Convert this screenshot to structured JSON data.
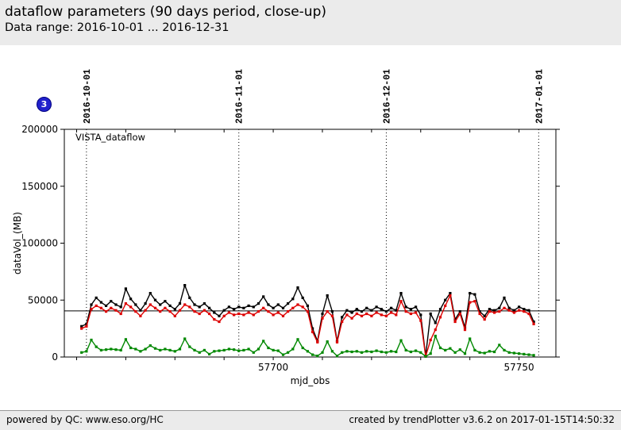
{
  "header": {
    "title": "dataflow parameters (90 days period, close-up)",
    "subtitle": "Data range: 2016-10-01 ... 2016-12-31"
  },
  "badge": {
    "label": "3",
    "color": "#2121cc"
  },
  "footer": {
    "left": "powered by QC: www.eso.org/HC",
    "right": "created by trendPlotter v3.6.2 on 2017-01-15T14:50:32"
  },
  "chart_data": {
    "type": "line",
    "inset_legend": "VISTA_dataflow",
    "xlabel": "mjd_obs",
    "ylabel": "dataVol_(MB)",
    "xlim": [
      57657.5,
      57757.5
    ],
    "ylim": [
      0,
      200000
    ],
    "y_ticks": [
      0,
      50000,
      100000,
      150000,
      200000
    ],
    "y_tick_labels": [
      "0",
      "50000",
      "100000",
      "150000",
      "200000"
    ],
    "x_ticks_labeled": [
      57700,
      57750
    ],
    "x_tick_labels": [
      "57700",
      "57750"
    ],
    "x_minor_ticks": [
      57660,
      57670,
      57680,
      57690,
      57700,
      57710,
      57720,
      57730,
      57740,
      57750
    ],
    "top_date_ticks": [
      {
        "mjd": 57662,
        "label": "2016-10-01"
      },
      {
        "mjd": 57693,
        "label": "2016-11-01"
      },
      {
        "mjd": 57723,
        "label": "2016-12-01"
      },
      {
        "mjd": 57754,
        "label": "2017-01-01"
      }
    ],
    "reference_line_y": 40500,
    "grid": "vertical dotted lines at month boundaries",
    "legend_position": "top-left inset",
    "x": [
      57661,
      57662,
      57663,
      57664,
      57665,
      57666,
      57667,
      57668,
      57669,
      57670,
      57671,
      57672,
      57673,
      57674,
      57675,
      57676,
      57677,
      57678,
      57679,
      57680,
      57681,
      57682,
      57683,
      57684,
      57685,
      57686,
      57687,
      57688,
      57689,
      57690,
      57691,
      57692,
      57693,
      57694,
      57695,
      57696,
      57697,
      57698,
      57699,
      57700,
      57701,
      57702,
      57703,
      57704,
      57705,
      57706,
      57707,
      57708,
      57709,
      57710,
      57711,
      57712,
      57713,
      57714,
      57715,
      57716,
      57717,
      57718,
      57719,
      57720,
      57721,
      57722,
      57723,
      57724,
      57725,
      57726,
      57727,
      57728,
      57729,
      57730,
      57731,
      57732,
      57733,
      57734,
      57735,
      57736,
      57737,
      57738,
      57739,
      57740,
      57741,
      57742,
      57743,
      57744,
      57745,
      57746,
      57747,
      57748,
      57749,
      57750,
      57751,
      57752,
      57753
    ],
    "series": [
      {
        "name": "black",
        "color": "#000000",
        "values": [
          27000,
          29000,
          46000,
          52000,
          48000,
          45000,
          49000,
          46000,
          44000,
          60000,
          51000,
          46000,
          41000,
          47000,
          56000,
          50000,
          46000,
          49000,
          45000,
          42000,
          47000,
          63000,
          52000,
          46000,
          44000,
          47000,
          43000,
          39000,
          36000,
          41000,
          44000,
          42000,
          44000,
          43000,
          45000,
          44000,
          47000,
          53000,
          46000,
          43000,
          46000,
          43000,
          47000,
          51000,
          61000,
          52000,
          45000,
          25000,
          14000,
          38000,
          54000,
          40000,
          14000,
          35000,
          41000,
          39000,
          42000,
          40000,
          43000,
          41000,
          44000,
          42000,
          40000,
          43000,
          41000,
          56000,
          44000,
          42000,
          44000,
          37000,
          1000,
          38000,
          30000,
          42000,
          50000,
          56000,
          33000,
          40000,
          26000,
          56000,
          55000,
          40000,
          36000,
          42000,
          41000,
          43000,
          52000,
          43000,
          41000,
          44000,
          42000,
          41000,
          31000
        ]
      },
      {
        "name": "red",
        "color": "#dd0000",
        "values": [
          25000,
          27000,
          42000,
          45000,
          43000,
          40000,
          43000,
          41000,
          38000,
          47000,
          44000,
          40000,
          36000,
          41000,
          46000,
          43000,
          40000,
          43000,
          40000,
          36000,
          41000,
          46000,
          44000,
          40000,
          38000,
          41000,
          38000,
          33000,
          31000,
          36000,
          39000,
          37000,
          38000,
          37000,
          39000,
          37000,
          40000,
          43000,
          40000,
          37000,
          39000,
          36000,
          40000,
          43000,
          46000,
          44000,
          40000,
          22000,
          13000,
          34000,
          40000,
          36000,
          13000,
          31000,
          37000,
          34000,
          38000,
          36000,
          38000,
          36000,
          39000,
          37000,
          36000,
          39000,
          37000,
          49000,
          40000,
          38000,
          39000,
          32000,
          500,
          15000,
          24000,
          35000,
          45000,
          54000,
          31000,
          38000,
          24000,
          48000,
          49000,
          38000,
          33000,
          40000,
          39000,
          40000,
          43000,
          41000,
          39000,
          41000,
          40000,
          38000,
          29000
        ]
      },
      {
        "name": "green",
        "color": "#008800",
        "values": [
          4000,
          5000,
          15000,
          9000,
          6000,
          6500,
          7000,
          6500,
          6000,
          15500,
          8000,
          7000,
          5000,
          7000,
          10000,
          7500,
          6000,
          7000,
          6000,
          5000,
          7000,
          16000,
          9000,
          6000,
          4000,
          6000,
          2500,
          5000,
          5500,
          6000,
          7000,
          6500,
          5500,
          6000,
          7000,
          4000,
          7000,
          14000,
          8000,
          6000,
          5500,
          2000,
          4000,
          7000,
          15500,
          8000,
          5000,
          2000,
          1000,
          4000,
          13500,
          5000,
          1000,
          4000,
          5000,
          4500,
          5000,
          4000,
          5000,
          4500,
          5500,
          4500,
          4000,
          5000,
          4500,
          14500,
          6000,
          4500,
          5500,
          4000,
          500,
          3000,
          18500,
          8000,
          6000,
          7500,
          4000,
          6500,
          3000,
          16000,
          6000,
          4000,
          3500,
          5000,
          4500,
          10500,
          6000,
          4000,
          3500,
          3000,
          2500,
          2000,
          1500
        ]
      }
    ]
  }
}
